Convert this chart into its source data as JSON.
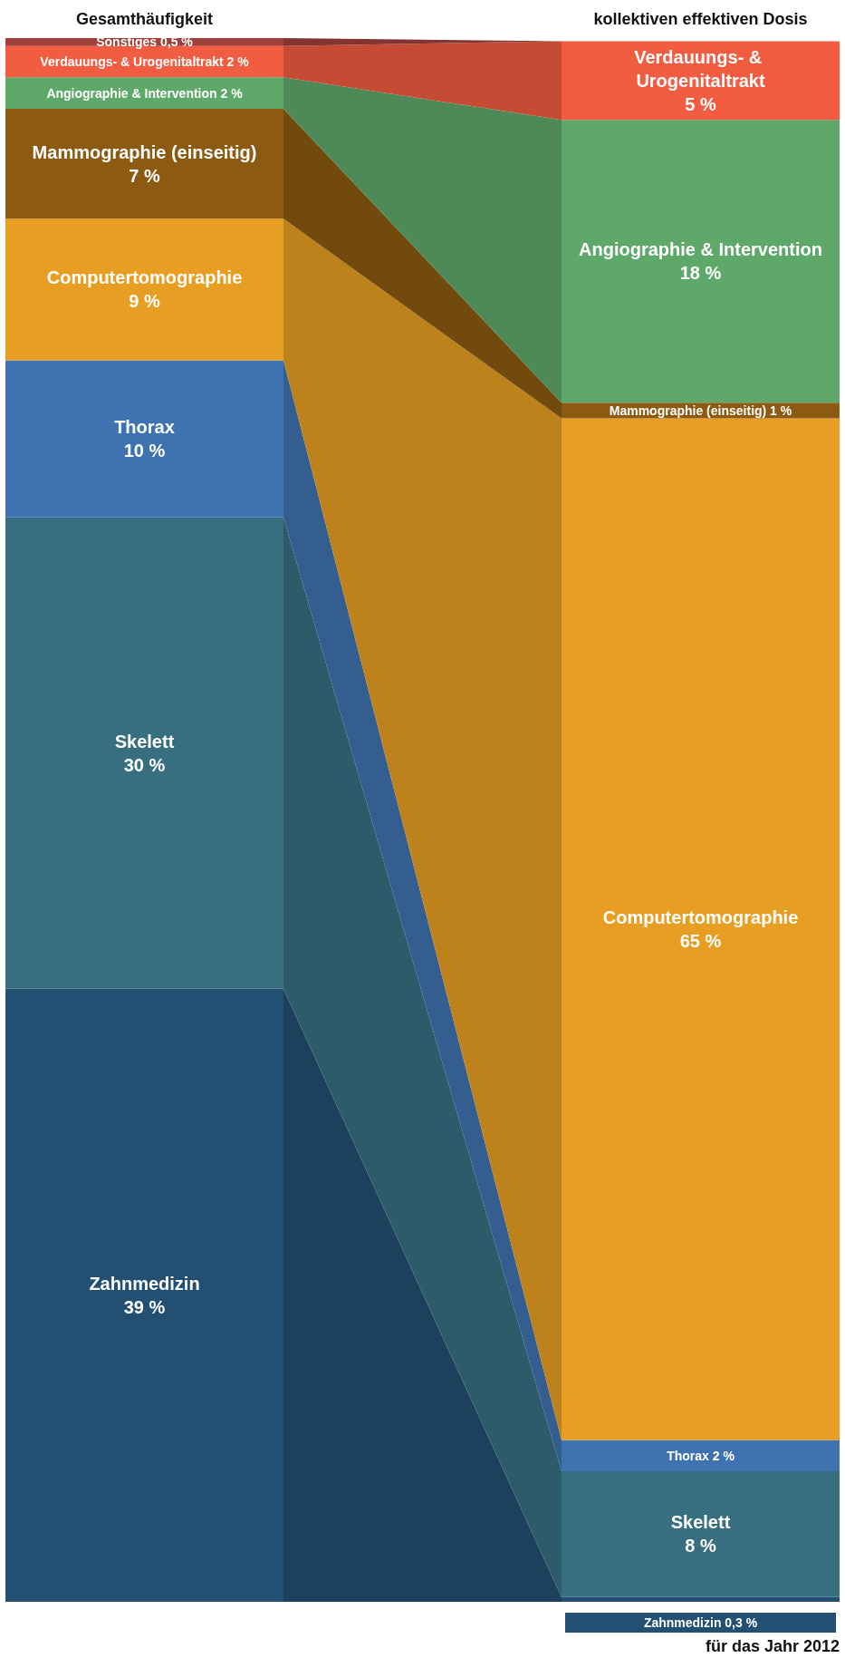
{
  "chart_data": {
    "type": "bar",
    "stacked": true,
    "categories": [
      "Gesamthäufigkeit",
      "kollektiven effektiven Dosis"
    ],
    "series": [
      {
        "name": "Zahnmedizin",
        "color": "#234f72",
        "values": [
          39,
          0.3
        ],
        "value_labels": [
          "39 %",
          "Zahnmedizin 0,3 %"
        ]
      },
      {
        "name": "Skelett",
        "color": "#376f80",
        "values": [
          30,
          8
        ],
        "value_labels": [
          "30 %",
          "8 %"
        ]
      },
      {
        "name": "Thorax",
        "color": "#3f72b0",
        "values": [
          10,
          2
        ],
        "value_labels": [
          "10 %",
          "2 %"
        ]
      },
      {
        "name": "Computertomographie",
        "color": "#e89e22",
        "values": [
          9,
          65
        ],
        "value_labels": [
          "9 %",
          "65 %"
        ]
      },
      {
        "name": "Mammographie (einseitig)",
        "color": "#8c5a10",
        "values": [
          7,
          1
        ],
        "value_labels": [
          "7 %",
          "1 %"
        ]
      },
      {
        "name": "Angiographie & Intervention",
        "color": "#5ea86a",
        "values": [
          2,
          18
        ],
        "value_labels": [
          "2 %",
          "18 %"
        ]
      },
      {
        "name": "Verdauungs- & Urogenitaltrakt",
        "color": "#f25c40",
        "values": [
          2,
          5
        ],
        "value_labels": [
          "2 %",
          "5 %"
        ]
      },
      {
        "name": "Sonstiges",
        "color": "#a0403a",
        "values": [
          0.5,
          null
        ],
        "value_labels": [
          "0,5 %",
          null
        ]
      }
    ],
    "annotations": [
      "für das Jahr 2012"
    ],
    "legend": false,
    "grid": false
  }
}
